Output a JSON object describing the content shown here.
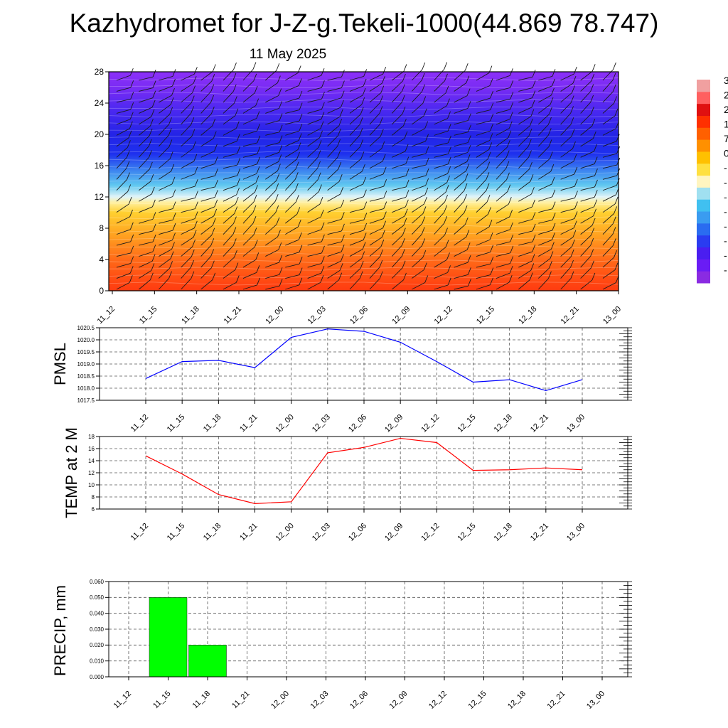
{
  "title": "Kazhydromet for J-Z-g.Tekeli-1000(44.869 78.747)",
  "subtitle": "11 May 2025",
  "colorbar": {
    "colors": [
      "#8a2be2",
      "#6a1cf5",
      "#4a1ef0",
      "#2a3cf0",
      "#2a6cf0",
      "#3a9cf0",
      "#40c0f0",
      "#a0e0f0",
      "#fff5c0",
      "#ffe040",
      "#ffc000",
      "#ff9000",
      "#ff6000",
      "#ff3000",
      "#e01010",
      "#ff6060",
      "#f0a0a0"
    ],
    "labels": [
      "3",
      "2",
      "2",
      "1",
      "7",
      "0",
      "-",
      "-",
      "-",
      "-",
      "-",
      "-",
      "-",
      "-"
    ]
  },
  "chart_data": [
    {
      "type": "heatmap",
      "name": "cross-section",
      "categories": [
        "11_12",
        "11_15",
        "11_18",
        "11_21",
        "12_00",
        "12_03",
        "12_06",
        "12_09",
        "12_12",
        "12_15",
        "12_18",
        "12_21",
        "13_00"
      ],
      "ylim": [
        0,
        28
      ],
      "yticks": [
        "0",
        "4",
        "8",
        "12",
        "16",
        "20",
        "24",
        "28"
      ],
      "gradient": [
        {
          "y": 0,
          "color": "#ff3a10"
        },
        {
          "y": 4,
          "color": "#ff6a18"
        },
        {
          "y": 7,
          "color": "#ffa020"
        },
        {
          "y": 10,
          "color": "#ffd030"
        },
        {
          "y": 11.3,
          "color": "#fff0a0"
        },
        {
          "y": 12,
          "color": "#e0f4f8"
        },
        {
          "y": 13.5,
          "color": "#60c8f0"
        },
        {
          "y": 15.5,
          "color": "#3a80f0"
        },
        {
          "y": 17.5,
          "color": "#1e30ee"
        },
        {
          "y": 20,
          "color": "#2424e6"
        },
        {
          "y": 23,
          "color": "#4a28f0"
        },
        {
          "y": 26,
          "color": "#7a2cf4"
        },
        {
          "y": 28,
          "color": "#8c30f8"
        }
      ]
    },
    {
      "type": "line",
      "ylabel": "PMSL",
      "categories": [
        "11_12",
        "11_15",
        "11_18",
        "11_21",
        "12_00",
        "12_03",
        "12_06",
        "12_09",
        "12_12",
        "12_15",
        "12_18",
        "12_21",
        "13_00"
      ],
      "series": [
        {
          "values": [
            1018.4,
            1019.1,
            1019.15,
            1018.85,
            1020.1,
            1020.45,
            1020.35,
            1019.9,
            1019.1,
            1018.25,
            1018.35,
            1017.9,
            1018.35
          ],
          "color": "#0000ff"
        }
      ],
      "ylim": [
        1017.5,
        1020.5
      ],
      "yticks": [
        "1017.5",
        "1018.0",
        "1018.5",
        "1019.0",
        "1019.5",
        "1020.0",
        "1020.5"
      ],
      "grid": true
    },
    {
      "type": "line",
      "ylabel": "TEMP at 2 M",
      "categories": [
        "11_12",
        "11_15",
        "11_18",
        "11_21",
        "12_00",
        "12_03",
        "12_06",
        "12_09",
        "12_12",
        "12_15",
        "12_18",
        "12_21",
        "13_00"
      ],
      "series": [
        {
          "values": [
            14.8,
            11.8,
            8.4,
            6.9,
            7.2,
            15.3,
            16.2,
            17.7,
            17.0,
            12.4,
            12.5,
            12.8,
            12.5
          ],
          "color": "#ff0000"
        }
      ],
      "ylim": [
        6,
        18
      ],
      "yticks": [
        "6",
        "8",
        "10",
        "12",
        "14",
        "16",
        "18"
      ],
      "grid": true
    },
    {
      "type": "bar",
      "ylabel": "PRECIP, mm",
      "categories": [
        "11_12",
        "11_15",
        "11_18",
        "11_21",
        "12_00",
        "12_03",
        "12_06",
        "12_09",
        "12_12",
        "12_15",
        "12_18",
        "12_21",
        "13_00"
      ],
      "values": [
        0,
        0.05,
        0.02,
        0,
        0,
        0,
        0,
        0,
        0,
        0,
        0,
        0,
        0
      ],
      "ylim": [
        0,
        0.06
      ],
      "yticks": [
        "0.000",
        "0.010",
        "0.020",
        "0.030",
        "0.040",
        "0.050",
        "0.060"
      ],
      "color": "#00ff00",
      "grid": true
    }
  ]
}
